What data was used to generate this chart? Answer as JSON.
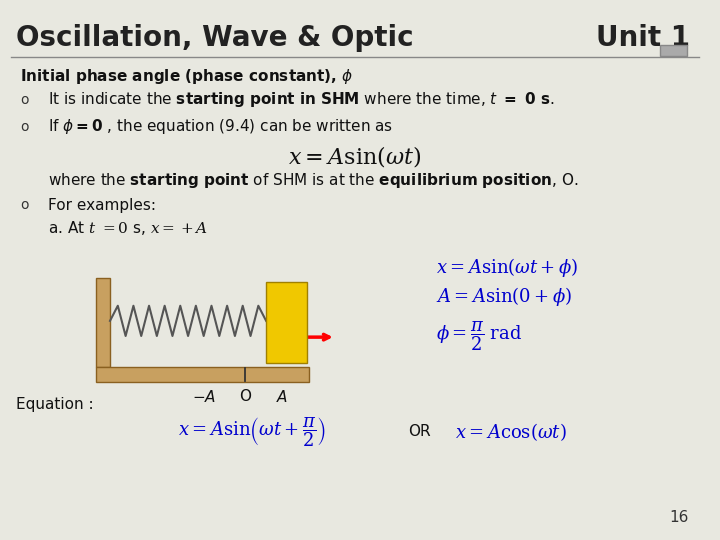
{
  "title_left": "Oscillation, Wave & Optic",
  "title_right": "Unit 1",
  "bg_color": "#e8e8e0",
  "header_line_color": "#888888",
  "header_text_color": "#222222",
  "slide_number": "16",
  "equation_label": "Equation :",
  "body_color": "#111111",
  "blue_color": "#0000cd"
}
